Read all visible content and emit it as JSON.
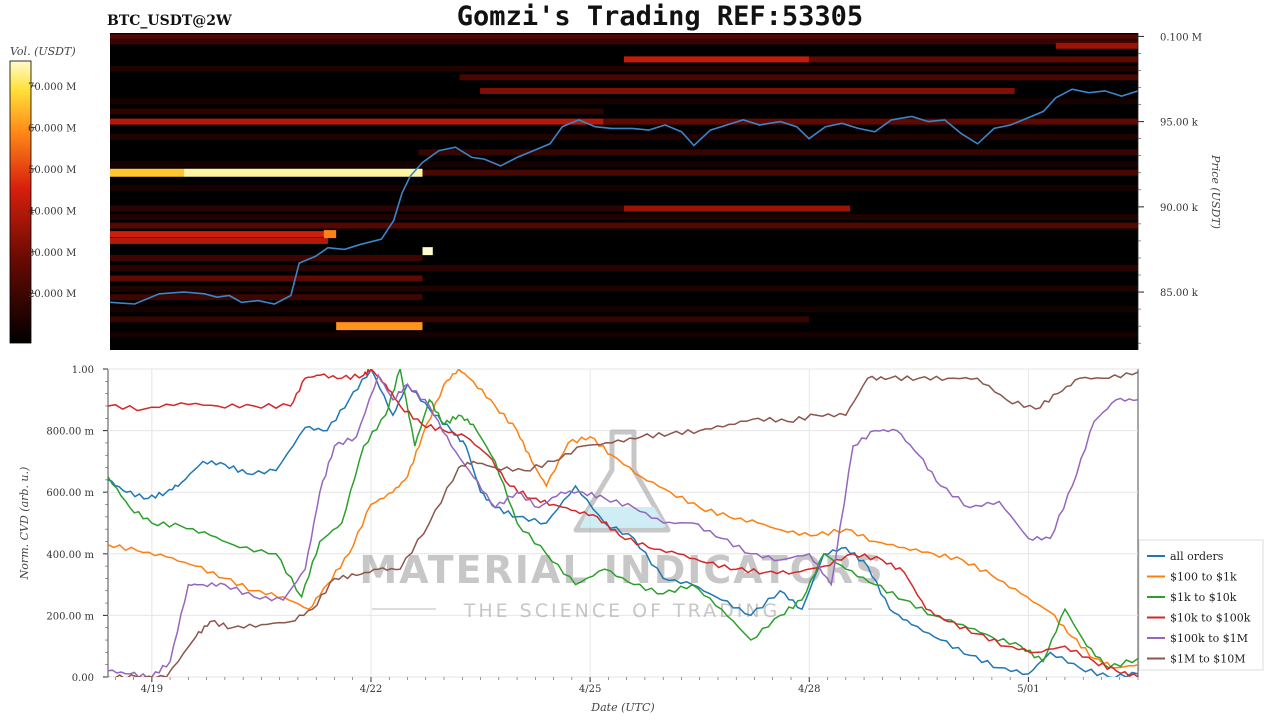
{
  "header": {
    "symbol": "BTC_USDT@2W",
    "title": "Gomzi's Trading REF:53305"
  },
  "watermark": {
    "brand": "MATERIAL INDICATORS",
    "tagline": "THE SCIENCE OF TRADING"
  },
  "colors": {
    "price_line": "#3a86c8",
    "heat_low": "#000000",
    "heat_mid": "#c21a0e",
    "heat_high": "#fff8c0"
  },
  "chart_data": [
    {
      "type": "heatmap",
      "subtype": "order-book liquidity heatmap with price line",
      "colorbar_label": "Vol. (USDT)",
      "colorbar_ticks": [
        "70.000 M",
        "60.000 M",
        "50.000 M",
        "40.000 M",
        "30.000 M",
        "20.000 M"
      ],
      "colorbar_values": [
        70,
        60,
        50,
        40,
        30,
        20
      ],
      "colorbar_range": [
        8,
        76
      ],
      "ylabel": "Price (USDT)",
      "y_ticks": [
        "0.100 M",
        "95.00 k",
        "90.00 k",
        "85.00 k"
      ],
      "y_tick_values": [
        100000,
        95000,
        90000,
        85000
      ],
      "ylim": [
        81600,
        100200
      ],
      "xlim": [
        0,
        14.2
      ],
      "price": [
        [
          0.0,
          84400
        ],
        [
          0.6,
          84300
        ],
        [
          1.2,
          84900
        ],
        [
          1.8,
          85000
        ],
        [
          2.3,
          84900
        ],
        [
          2.6,
          84700
        ],
        [
          2.9,
          84800
        ],
        [
          3.2,
          84400
        ],
        [
          3.6,
          84500
        ],
        [
          4.0,
          84300
        ],
        [
          4.4,
          84800
        ],
        [
          4.6,
          86700
        ],
        [
          5.0,
          87100
        ],
        [
          5.3,
          87600
        ],
        [
          5.7,
          87500
        ],
        [
          6.1,
          87800
        ],
        [
          6.6,
          88100
        ],
        [
          6.9,
          89200
        ],
        [
          7.1,
          90800
        ],
        [
          7.3,
          91800
        ],
        [
          7.6,
          92600
        ],
        [
          8.0,
          93300
        ],
        [
          8.4,
          93500
        ],
        [
          8.8,
          92900
        ],
        [
          9.1,
          92800
        ],
        [
          9.5,
          92400
        ],
        [
          9.9,
          92900
        ],
        [
          10.3,
          93300
        ],
        [
          10.7,
          93700
        ],
        [
          11.0,
          94700
        ],
        [
          11.4,
          95100
        ],
        [
          11.8,
          94700
        ],
        [
          12.2,
          94600
        ],
        [
          12.7,
          94600
        ],
        [
          13.1,
          94500
        ],
        [
          13.5,
          94800
        ],
        [
          13.9,
          94400
        ],
        [
          14.2,
          93600
        ],
        [
          14.6,
          94500
        ],
        [
          15.0,
          94800
        ],
        [
          15.4,
          95100
        ],
        [
          15.8,
          94800
        ],
        [
          16.3,
          95000
        ],
        [
          16.7,
          94700
        ],
        [
          17.0,
          94000
        ],
        [
          17.4,
          94700
        ],
        [
          17.8,
          94900
        ],
        [
          18.2,
          94600
        ],
        [
          18.6,
          94400
        ],
        [
          19.0,
          95100
        ],
        [
          19.5,
          95300
        ],
        [
          19.9,
          95000
        ],
        [
          20.3,
          95100
        ],
        [
          20.7,
          94300
        ],
        [
          21.1,
          93700
        ],
        [
          21.5,
          94600
        ],
        [
          21.9,
          94800
        ],
        [
          22.3,
          95200
        ],
        [
          22.7,
          95600
        ],
        [
          23.0,
          96400
        ],
        [
          23.4,
          96900
        ],
        [
          23.8,
          96700
        ],
        [
          24.2,
          96800
        ],
        [
          24.6,
          96500
        ],
        [
          25.0,
          96800
        ]
      ],
      "bands": [
        {
          "p": 99950,
          "t0": 0.0,
          "t1": 25.0,
          "v": 24
        },
        {
          "p": 99700,
          "t0": 0.0,
          "t1": 25.0,
          "v": 18
        },
        {
          "p": 99450,
          "t0": 23.0,
          "t1": 25.0,
          "v": 36
        },
        {
          "p": 98650,
          "t0": 12.5,
          "t1": 17.0,
          "v": 42
        },
        {
          "p": 98650,
          "t0": 17.0,
          "t1": 25.0,
          "v": 26
        },
        {
          "p": 98100,
          "t0": 0.0,
          "t1": 25.0,
          "v": 14
        },
        {
          "p": 97600,
          "t0": 8.5,
          "t1": 25.0,
          "v": 22
        },
        {
          "p": 96800,
          "t0": 9.0,
          "t1": 22.0,
          "v": 32
        },
        {
          "p": 96200,
          "t0": 0.0,
          "t1": 25.0,
          "v": 12
        },
        {
          "p": 95600,
          "t0": 0.0,
          "t1": 12.0,
          "v": 16
        },
        {
          "p": 95000,
          "t0": 0.0,
          "t1": 12.0,
          "v": 40
        },
        {
          "p": 95000,
          "t0": 12.0,
          "t1": 25.0,
          "v": 26
        },
        {
          "p": 94100,
          "t0": 0.0,
          "t1": 25.0,
          "v": 14
        },
        {
          "p": 93200,
          "t0": 7.5,
          "t1": 25.0,
          "v": 18
        },
        {
          "p": 92500,
          "t0": 0.0,
          "t1": 25.0,
          "v": 12
        },
        {
          "p": 92000,
          "t0": 0.0,
          "t1": 1.8,
          "v": 66
        },
        {
          "p": 92000,
          "t0": 1.8,
          "t1": 7.6,
          "v": 74
        },
        {
          "p": 92000,
          "t0": 7.6,
          "t1": 25.0,
          "v": 22
        },
        {
          "p": 91100,
          "t0": 0.0,
          "t1": 25.0,
          "v": 12
        },
        {
          "p": 89900,
          "t0": 12.5,
          "t1": 18.0,
          "v": 36
        },
        {
          "p": 89900,
          "t0": 0.0,
          "t1": 12.5,
          "v": 16
        },
        {
          "p": 89400,
          "t0": 0.0,
          "t1": 25.0,
          "v": 14
        },
        {
          "p": 88900,
          "t0": 0.0,
          "t1": 25.0,
          "v": 24
        },
        {
          "p": 88400,
          "t0": 0.0,
          "t1": 5.3,
          "v": 44
        },
        {
          "p": 88000,
          "t0": 0.0,
          "t1": 5.3,
          "v": 40
        },
        {
          "p": 88400,
          "t0": 5.2,
          "t1": 5.5,
          "v": 58
        },
        {
          "p": 87400,
          "t0": 7.6,
          "t1": 7.85,
          "v": 76
        },
        {
          "p": 87000,
          "t0": 0.0,
          "t1": 7.6,
          "v": 20
        },
        {
          "p": 86400,
          "t0": 0.0,
          "t1": 25.0,
          "v": 16
        },
        {
          "p": 85800,
          "t0": 0.0,
          "t1": 7.6,
          "v": 26
        },
        {
          "p": 85200,
          "t0": 0.0,
          "t1": 25.0,
          "v": 14
        },
        {
          "p": 84700,
          "t0": 0.0,
          "t1": 7.6,
          "v": 20
        },
        {
          "p": 84000,
          "t0": 0.0,
          "t1": 25.0,
          "v": 12
        },
        {
          "p": 83400,
          "t0": 0.0,
          "t1": 17.0,
          "v": 18
        },
        {
          "p": 83000,
          "t0": 5.5,
          "t1": 7.6,
          "v": 60
        },
        {
          "p": 82500,
          "t0": 0.0,
          "t1": 25.0,
          "v": 12
        }
      ]
    },
    {
      "type": "line",
      "xlabel": "Date (UTC)",
      "ylabel": "Norm. CVD (arb. u.)",
      "xlim": [
        0,
        14.1
      ],
      "ylim": [
        0,
        1
      ],
      "x_ticks": [
        "4/19",
        "4/22",
        "4/25",
        "4/28",
        "5/01"
      ],
      "x_tick_values": [
        0.6,
        3.6,
        6.6,
        9.6,
        12.6
      ],
      "y_ticks": [
        "1.00",
        "800.00 m",
        "600.00 m",
        "400.00 m",
        "200.00 m",
        "0.00"
      ],
      "y_tick_values": [
        1.0,
        0.8,
        0.6,
        0.4,
        0.2,
        0.0
      ],
      "grid": true,
      "legend_position": "bottom-right",
      "series": [
        {
          "name": "all orders",
          "color": "#1f77b4",
          "x": [
            0.0,
            0.25,
            0.55,
            0.8,
            1.0,
            1.3,
            1.6,
            1.9,
            2.3,
            2.7,
            3.0,
            3.3,
            3.6,
            3.9,
            4.1,
            4.4,
            4.7,
            4.9,
            5.1,
            5.3,
            5.6,
            6.0,
            6.4,
            6.8,
            7.2,
            7.6,
            8.0,
            8.4,
            8.8,
            9.2,
            9.5,
            9.8,
            10.1,
            10.4,
            10.7,
            11.0,
            11.4,
            11.8,
            12.2,
            12.6,
            12.9,
            13.3,
            13.7,
            14.1
          ],
          "y": [
            0.64,
            0.6,
            0.58,
            0.6,
            0.63,
            0.7,
            0.69,
            0.66,
            0.67,
            0.81,
            0.8,
            0.9,
            1.0,
            0.85,
            0.95,
            0.87,
            0.8,
            0.75,
            0.6,
            0.55,
            0.52,
            0.5,
            0.62,
            0.5,
            0.45,
            0.32,
            0.3,
            0.25,
            0.2,
            0.28,
            0.22,
            0.4,
            0.42,
            0.36,
            0.22,
            0.17,
            0.12,
            0.07,
            0.03,
            0.01,
            0.08,
            0.03,
            0.0,
            0.01
          ]
        },
        {
          "name": "$100 to $1k",
          "color": "#ff7f0e",
          "x": [
            0.0,
            0.4,
            0.8,
            1.2,
            1.6,
            2.0,
            2.4,
            2.75,
            3.0,
            3.3,
            3.6,
            3.9,
            4.1,
            4.3,
            4.6,
            4.8,
            5.0,
            5.3,
            5.6,
            5.8,
            6.0,
            6.3,
            6.6,
            6.9,
            7.3,
            7.7,
            8.1,
            8.5,
            8.9,
            9.3,
            9.7,
            10.1,
            10.5,
            10.9,
            11.3,
            11.7,
            12.1,
            12.5,
            12.9,
            13.2,
            13.5,
            13.8,
            14.1
          ],
          "y": [
            0.43,
            0.41,
            0.39,
            0.36,
            0.32,
            0.28,
            0.26,
            0.22,
            0.3,
            0.4,
            0.56,
            0.6,
            0.65,
            0.78,
            0.95,
            1.0,
            0.96,
            0.88,
            0.8,
            0.7,
            0.62,
            0.76,
            0.78,
            0.72,
            0.65,
            0.6,
            0.55,
            0.52,
            0.5,
            0.47,
            0.46,
            0.48,
            0.44,
            0.42,
            0.4,
            0.38,
            0.33,
            0.27,
            0.21,
            0.13,
            0.06,
            0.03,
            0.04
          ]
        },
        {
          "name": "$1k to $10k",
          "color": "#2ca02c",
          "x": [
            0.0,
            0.3,
            0.6,
            1.0,
            1.4,
            1.8,
            2.3,
            2.65,
            2.9,
            3.2,
            3.5,
            3.8,
            4.0,
            4.2,
            4.4,
            4.6,
            4.8,
            5.0,
            5.3,
            5.6,
            6.0,
            6.4,
            6.8,
            7.2,
            7.6,
            8.0,
            8.4,
            8.8,
            9.2,
            9.5,
            9.8,
            10.1,
            10.5,
            10.9,
            11.3,
            11.7,
            12.1,
            12.5,
            12.8,
            13.1,
            13.4,
            13.7,
            14.1
          ],
          "y": [
            0.65,
            0.55,
            0.5,
            0.49,
            0.46,
            0.42,
            0.4,
            0.26,
            0.44,
            0.5,
            0.75,
            0.85,
            1.0,
            0.75,
            0.9,
            0.82,
            0.85,
            0.82,
            0.7,
            0.5,
            0.4,
            0.3,
            0.35,
            0.3,
            0.27,
            0.3,
            0.22,
            0.12,
            0.2,
            0.25,
            0.4,
            0.35,
            0.3,
            0.25,
            0.2,
            0.17,
            0.13,
            0.1,
            0.05,
            0.22,
            0.1,
            0.03,
            0.06
          ]
        },
        {
          "name": "$10k to $100k",
          "color": "#d62728",
          "x": [
            0.0,
            0.5,
            1.0,
            1.5,
            2.0,
            2.5,
            2.7,
            2.9,
            3.2,
            3.5,
            3.6,
            3.8,
            4.0,
            4.3,
            4.6,
            4.9,
            5.2,
            5.5,
            5.8,
            6.1,
            6.4,
            6.7,
            7.0,
            7.4,
            7.8,
            8.2,
            8.6,
            9.0,
            9.4,
            9.8,
            10.2,
            10.6,
            10.9,
            11.2,
            11.5,
            11.9,
            12.3,
            12.7,
            13.1,
            13.5,
            13.8,
            14.1
          ],
          "y": [
            0.88,
            0.87,
            0.89,
            0.88,
            0.88,
            0.88,
            0.97,
            0.98,
            0.97,
            0.98,
            1.0,
            0.95,
            0.88,
            0.82,
            0.8,
            0.78,
            0.72,
            0.62,
            0.58,
            0.56,
            0.54,
            0.52,
            0.46,
            0.42,
            0.4,
            0.37,
            0.35,
            0.34,
            0.34,
            0.36,
            0.4,
            0.38,
            0.34,
            0.22,
            0.18,
            0.14,
            0.1,
            0.08,
            0.1,
            0.05,
            0.02,
            0.0
          ]
        },
        {
          "name": "$100k to $1M",
          "color": "#9467bd",
          "x": [
            0.0,
            0.3,
            0.6,
            0.85,
            1.1,
            1.3,
            1.6,
            2.0,
            2.4,
            2.7,
            2.9,
            3.1,
            3.4,
            3.7,
            3.9,
            4.1,
            4.4,
            4.7,
            5.0,
            5.3,
            5.6,
            5.9,
            6.2,
            6.5,
            6.8,
            7.2,
            7.6,
            8.0,
            8.4,
            8.8,
            9.2,
            9.6,
            9.9,
            10.2,
            10.5,
            10.8,
            11.1,
            11.4,
            11.8,
            12.2,
            12.6,
            12.9,
            13.2,
            13.5,
            13.8,
            14.1
          ],
          "y": [
            0.02,
            0.01,
            0.0,
            0.05,
            0.3,
            0.3,
            0.3,
            0.26,
            0.25,
            0.35,
            0.6,
            0.75,
            0.78,
            0.98,
            0.9,
            0.95,
            0.88,
            0.75,
            0.65,
            0.55,
            0.6,
            0.55,
            0.6,
            0.6,
            0.58,
            0.55,
            0.5,
            0.5,
            0.45,
            0.4,
            0.38,
            0.4,
            0.3,
            0.75,
            0.8,
            0.8,
            0.72,
            0.62,
            0.55,
            0.57,
            0.45,
            0.45,
            0.62,
            0.83,
            0.9,
            0.9
          ]
        },
        {
          "name": "$1M to $10M",
          "color": "#8c564b",
          "x": [
            0.0,
            0.4,
            0.8,
            1.2,
            1.4,
            1.7,
            2.1,
            2.5,
            2.8,
            3.1,
            3.4,
            3.7,
            4.0,
            4.4,
            4.8,
            5.0,
            5.3,
            5.7,
            6.1,
            6.5,
            6.9,
            7.3,
            7.7,
            8.1,
            8.5,
            8.9,
            9.3,
            9.7,
            10.1,
            10.4,
            10.7,
            11.1,
            11.5,
            11.9,
            12.3,
            12.7,
            13.0,
            13.3,
            13.7,
            14.1
          ],
          "y": [
            0.0,
            0.0,
            0.0,
            0.13,
            0.18,
            0.16,
            0.17,
            0.18,
            0.22,
            0.32,
            0.33,
            0.35,
            0.35,
            0.5,
            0.68,
            0.7,
            0.68,
            0.67,
            0.7,
            0.75,
            0.76,
            0.78,
            0.79,
            0.8,
            0.82,
            0.84,
            0.83,
            0.85,
            0.85,
            0.97,
            0.97,
            0.97,
            0.97,
            0.97,
            0.9,
            0.87,
            0.92,
            0.97,
            0.97,
            0.99
          ]
        }
      ]
    }
  ]
}
